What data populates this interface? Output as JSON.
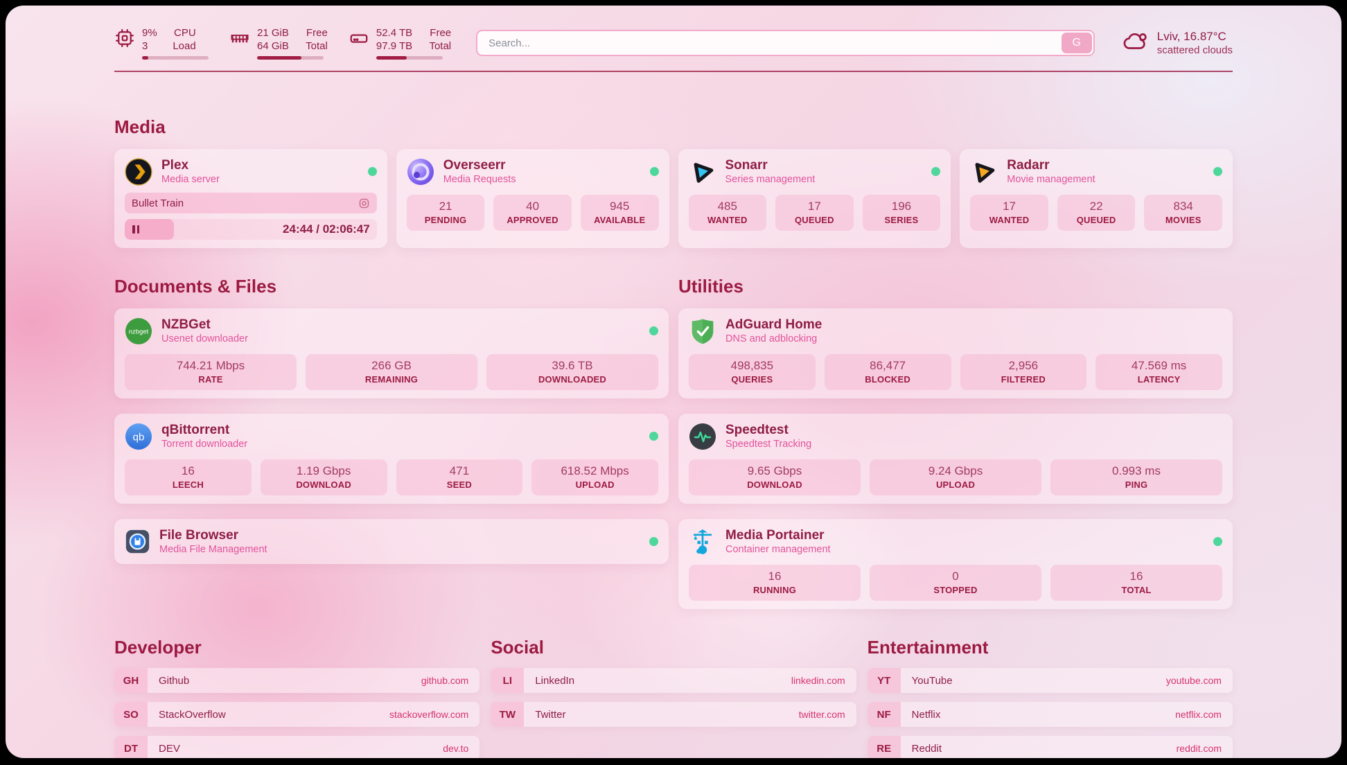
{
  "colors": {
    "accent": "#9c1a42",
    "pink_subtitle": "#e2539c",
    "link_pink": "#d6336c",
    "online_dot": "#4ed79b"
  },
  "header": {
    "resources": [
      {
        "icon": "cpu-icon",
        "v1": "9%",
        "v2": "3",
        "l1": "CPU",
        "l2": "Load",
        "progress_pct": 9
      },
      {
        "icon": "memory-icon",
        "v1": "21 GiB",
        "v2": "64 GiB",
        "l1": "Free",
        "l2": "Total",
        "progress_pct": 67
      },
      {
        "icon": "disk-icon",
        "v1": "52.4 TB",
        "v2": "97.9 TB",
        "l1": "Free",
        "l2": "Total",
        "progress_pct": 46
      }
    ],
    "search": {
      "placeholder": "Search...",
      "button_label": "G"
    },
    "weather": {
      "line1": "Lviv, 16.87°C",
      "line2": "scattered clouds"
    }
  },
  "media": {
    "title": "Media",
    "plex": {
      "title": "Plex",
      "subtitle": "Media server",
      "now_playing": "Bullet Train",
      "time": "24:44 / 02:06:47",
      "progress_pct": 19.5
    },
    "overseerr": {
      "title": "Overseerr",
      "subtitle": "Media Requests",
      "stats": [
        {
          "value": "21",
          "label": "PENDING"
        },
        {
          "value": "40",
          "label": "APPROVED"
        },
        {
          "value": "945",
          "label": "AVAILABLE"
        }
      ]
    },
    "sonarr": {
      "title": "Sonarr",
      "subtitle": "Series management",
      "stats": [
        {
          "value": "485",
          "label": "WANTED"
        },
        {
          "value": "17",
          "label": "QUEUED"
        },
        {
          "value": "196",
          "label": "SERIES"
        }
      ]
    },
    "radarr": {
      "title": "Radarr",
      "subtitle": "Movie management",
      "stats": [
        {
          "value": "17",
          "label": "WANTED"
        },
        {
          "value": "22",
          "label": "QUEUED"
        },
        {
          "value": "834",
          "label": "MOVIES"
        }
      ]
    }
  },
  "documents": {
    "title": "Documents & Files",
    "nzbget": {
      "title": "NZBGet",
      "subtitle": "Usenet downloader",
      "stats": [
        {
          "value": "744.21 Mbps",
          "label": "RATE"
        },
        {
          "value": "266 GB",
          "label": "REMAINING"
        },
        {
          "value": "39.6 TB",
          "label": "DOWNLOADED"
        }
      ]
    },
    "qbittorrent": {
      "title": "qBittorrent",
      "subtitle": "Torrent downloader",
      "stats": [
        {
          "value": "16",
          "label": "LEECH"
        },
        {
          "value": "1.19 Gbps",
          "label": "DOWNLOAD"
        },
        {
          "value": "471",
          "label": "SEED"
        },
        {
          "value": "618.52 Mbps",
          "label": "UPLOAD"
        }
      ]
    },
    "filebrowser": {
      "title": "File Browser",
      "subtitle": "Media File Management"
    }
  },
  "utilities": {
    "title": "Utilities",
    "adguard": {
      "title": "AdGuard Home",
      "subtitle": "DNS and adblocking",
      "stats": [
        {
          "value": "498,835",
          "label": "QUERIES"
        },
        {
          "value": "86,477",
          "label": "BLOCKED"
        },
        {
          "value": "2,956",
          "label": "FILTERED"
        },
        {
          "value": "47.569 ms",
          "label": "LATENCY"
        }
      ]
    },
    "speedtest": {
      "title": "Speedtest",
      "subtitle": "Speedtest Tracking",
      "stats": [
        {
          "value": "9.65 Gbps",
          "label": "DOWNLOAD"
        },
        {
          "value": "9.24 Gbps",
          "label": "UPLOAD"
        },
        {
          "value": "0.993 ms",
          "label": "PING"
        }
      ]
    },
    "portainer": {
      "title": "Media Portainer",
      "subtitle": "Container management",
      "stats": [
        {
          "value": "16",
          "label": "RUNNING"
        },
        {
          "value": "0",
          "label": "STOPPED"
        },
        {
          "value": "16",
          "label": "TOTAL"
        }
      ]
    }
  },
  "bookmarks": {
    "developer": {
      "title": "Developer",
      "links": [
        {
          "abbr": "GH",
          "name": "Github",
          "url": "github.com"
        },
        {
          "abbr": "SO",
          "name": "StackOverflow",
          "url": "stackoverflow.com"
        },
        {
          "abbr": "DT",
          "name": "DEV",
          "url": "dev.to"
        }
      ]
    },
    "social": {
      "title": "Social",
      "links": [
        {
          "abbr": "LI",
          "name": "LinkedIn",
          "url": "linkedin.com"
        },
        {
          "abbr": "TW",
          "name": "Twitter",
          "url": "twitter.com"
        }
      ]
    },
    "entertainment": {
      "title": "Entertainment",
      "links": [
        {
          "abbr": "YT",
          "name": "YouTube",
          "url": "youtube.com"
        },
        {
          "abbr": "NF",
          "name": "Netflix",
          "url": "netflix.com"
        },
        {
          "abbr": "RE",
          "name": "Reddit",
          "url": "reddit.com"
        }
      ]
    }
  }
}
